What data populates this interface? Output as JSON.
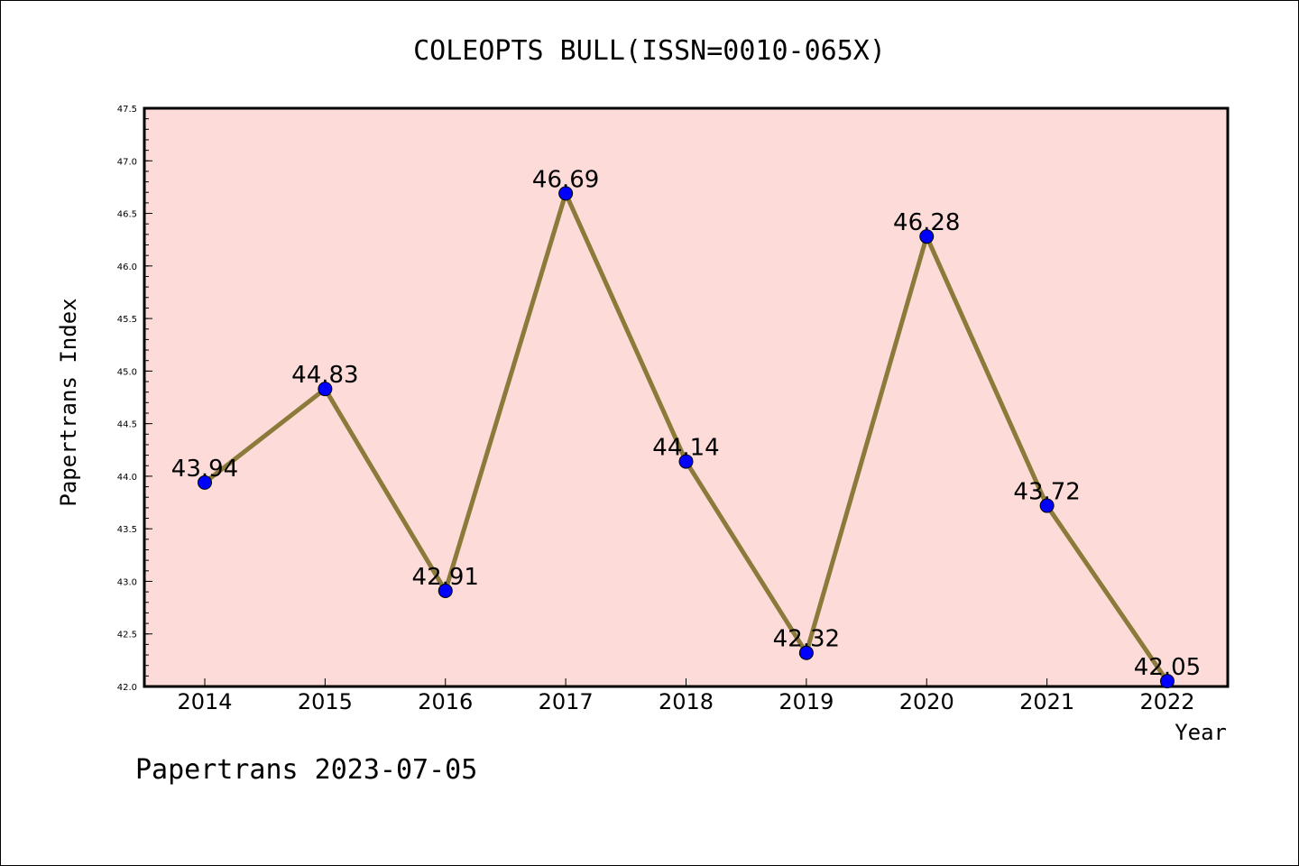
{
  "chart_data": {
    "type": "line",
    "title": "COLEOPTS BULL(ISSN=0010-065X)",
    "xlabel": "Year",
    "ylabel": "Papertrans Index",
    "categories": [
      "2014",
      "2015",
      "2016",
      "2017",
      "2018",
      "2019",
      "2020",
      "2021",
      "2022"
    ],
    "series": [
      {
        "values": [
          43.94,
          44.83,
          42.91,
          46.69,
          44.14,
          42.32,
          46.28,
          43.72,
          42.05
        ]
      }
    ],
    "data_labels": [
      "43.94",
      "44.83",
      "42.91",
      "46.69",
      "44.14",
      "42.32",
      "46.28",
      "43.72",
      "42.05"
    ],
    "ylim": [
      42.0,
      47.5
    ],
    "ytick_labels": [
      "42.0",
      "42.5",
      "43.0",
      "43.5",
      "44.0",
      "44.5",
      "45.0",
      "45.5",
      "46.0",
      "46.5",
      "47.0",
      "47.5"
    ],
    "grid": false,
    "colors": {
      "plot_background": "#fddbd9",
      "line": "#8b7a3a",
      "marker": "#0000ff"
    }
  },
  "footer": "Papertrans 2023-07-05"
}
